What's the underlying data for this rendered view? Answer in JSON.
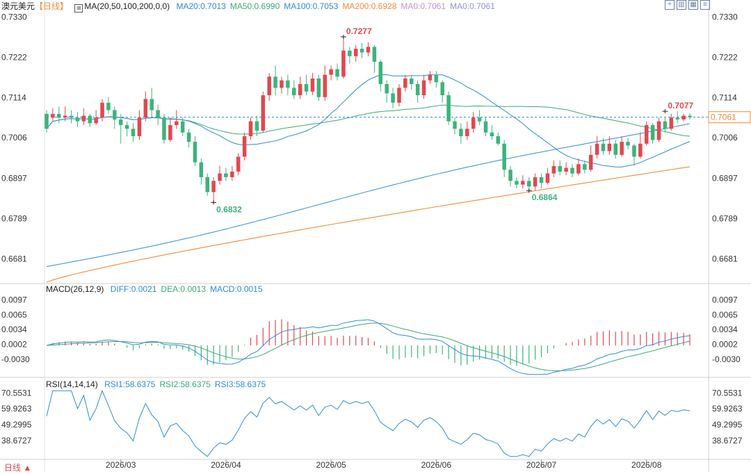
{
  "title": "澳元美元",
  "period_tab": "【日线】",
  "period_footer": "日线 ▲",
  "ma_header": {
    "label": "MA(20,50,100,200,0,0)",
    "items": [
      {
        "text": "MA20:0.7013",
        "color": "#2f8bd6"
      },
      {
        "text": "MA50:0.6990",
        "color": "#3aa876"
      },
      {
        "text": "MA100:0.7053",
        "color": "#2f8bd6"
      },
      {
        "text": "MA200:0.6928",
        "color": "#f08c3a"
      },
      {
        "text": "MA0:0.7061",
        "color": "#c58fd6"
      },
      {
        "text": "MA0:0.7061",
        "color": "#8f8fe0"
      }
    ]
  },
  "macd_header": {
    "label": "MACD(26,12,9)",
    "items": [
      {
        "text": "DIFF:0.0021",
        "color": "#2f8bd6"
      },
      {
        "text": "DEA:0.0013",
        "color": "#3aa876"
      },
      {
        "text": "MACD:0.0015",
        "color": "#2f8bd6"
      }
    ]
  },
  "rsi_header": {
    "label": "RSI(14,14,14)",
    "items": [
      {
        "text": "RSI1:58.6375",
        "color": "#2f8bd6"
      },
      {
        "text": "RSI2:58.6375",
        "color": "#3aa876"
      },
      {
        "text": "RSI3:58.6375",
        "color": "#2f8bd6"
      }
    ]
  },
  "toolbar_icons": [
    "crosshair-icon",
    "layout-icon",
    "indicator-icon",
    "settings-icon"
  ],
  "colors": {
    "up": "#e2474f",
    "down": "#3db37c",
    "ma20": "#2f8bd6",
    "ma50": "#3aa876",
    "ma100": "#2f8bd6",
    "ma200": "#f08c3a",
    "current_line": "#2f8bd6",
    "current_tag": "#f08c3a",
    "grid": "#e6e6e6"
  },
  "chart_data": [
    {
      "type": "candlestick",
      "title": "澳元美元",
      "y_ticks": [
        "0.7330",
        "0.7222",
        "0.7114",
        "0.7006",
        "0.6897",
        "0.6789",
        "0.6681"
      ],
      "ylim": [
        0.6618,
        0.7346
      ],
      "x_ticks": [
        "2026/03",
        "2026/04",
        "2026/05",
        "2026/06",
        "2026/07",
        "2026/08"
      ],
      "x_tick_index": [
        12,
        29,
        46,
        63,
        80,
        97
      ],
      "current_price": 0.7061,
      "current_price_label": "0.7061",
      "annotations": [
        {
          "text": "0.7277",
          "index": 48,
          "value": 0.7277,
          "kind": "high"
        },
        {
          "text": "0.6832",
          "index": 27,
          "value": 0.6832,
          "kind": "low"
        },
        {
          "text": "0.6864",
          "index": 78,
          "value": 0.6864,
          "kind": "low"
        },
        {
          "text": "0.7077",
          "index": 100,
          "value": 0.7077,
          "kind": "high"
        }
      ],
      "candles": [
        [
          0.707,
          0.703,
          0.708,
          0.702
        ],
        [
          0.706,
          0.707,
          0.7085,
          0.705
        ],
        [
          0.707,
          0.706,
          0.709,
          0.7045
        ],
        [
          0.706,
          0.7065,
          0.709,
          0.705
        ],
        [
          0.7065,
          0.706,
          0.708,
          0.7045
        ],
        [
          0.706,
          0.705,
          0.7075,
          0.7035
        ],
        [
          0.705,
          0.7065,
          0.7085,
          0.704
        ],
        [
          0.7065,
          0.7045,
          0.707,
          0.7035
        ],
        [
          0.7045,
          0.706,
          0.708,
          0.704
        ],
        [
          0.706,
          0.71,
          0.711,
          0.705
        ],
        [
          0.71,
          0.708,
          0.7115,
          0.707
        ],
        [
          0.708,
          0.7055,
          0.709,
          0.703
        ],
        [
          0.7055,
          0.704,
          0.707,
          0.699
        ],
        [
          0.704,
          0.703,
          0.705,
          0.701
        ],
        [
          0.703,
          0.701,
          0.7045,
          0.6995
        ],
        [
          0.701,
          0.706,
          0.708,
          0.7
        ],
        [
          0.706,
          0.711,
          0.713,
          0.705
        ],
        [
          0.711,
          0.708,
          0.714,
          0.706
        ],
        [
          0.708,
          0.706,
          0.7095,
          0.704
        ],
        [
          0.706,
          0.7,
          0.707,
          0.699
        ],
        [
          0.7,
          0.704,
          0.706,
          0.6995
        ],
        [
          0.704,
          0.705,
          0.708,
          0.703
        ],
        [
          0.705,
          0.702,
          0.706,
          0.701
        ],
        [
          0.702,
          0.6995,
          0.703,
          0.698
        ],
        [
          0.6995,
          0.694,
          0.701,
          0.693
        ],
        [
          0.694,
          0.69,
          0.695,
          0.688
        ],
        [
          0.69,
          0.686,
          0.691,
          0.685
        ],
        [
          0.686,
          0.689,
          0.69,
          0.6832
        ],
        [
          0.689,
          0.691,
          0.693,
          0.688
        ],
        [
          0.691,
          0.69,
          0.6925,
          0.689
        ],
        [
          0.69,
          0.6915,
          0.693,
          0.689
        ],
        [
          0.6915,
          0.6955,
          0.6965,
          0.6905
        ],
        [
          0.6955,
          0.701,
          0.702,
          0.6945
        ],
        [
          0.701,
          0.705,
          0.706,
          0.7
        ],
        [
          0.705,
          0.7025,
          0.7065,
          0.701
        ],
        [
          0.7025,
          0.712,
          0.713,
          0.702
        ],
        [
          0.712,
          0.717,
          0.718,
          0.7105
        ],
        [
          0.717,
          0.714,
          0.72,
          0.712
        ],
        [
          0.714,
          0.716,
          0.717,
          0.7125
        ],
        [
          0.716,
          0.714,
          0.7175,
          0.712
        ],
        [
          0.714,
          0.712,
          0.716,
          0.711
        ],
        [
          0.712,
          0.715,
          0.717,
          0.711
        ],
        [
          0.715,
          0.713,
          0.7175,
          0.712
        ],
        [
          0.713,
          0.7165,
          0.718,
          0.712
        ],
        [
          0.7165,
          0.7115,
          0.7175,
          0.7105
        ],
        [
          0.7115,
          0.7175,
          0.72,
          0.7105
        ],
        [
          0.7175,
          0.719,
          0.72,
          0.716
        ],
        [
          0.719,
          0.717,
          0.7205,
          0.716
        ],
        [
          0.717,
          0.724,
          0.7277,
          0.7165
        ],
        [
          0.724,
          0.7225,
          0.725,
          0.7205
        ],
        [
          0.7225,
          0.7245,
          0.7255,
          0.721
        ],
        [
          0.7245,
          0.7235,
          0.726,
          0.722
        ],
        [
          0.7235,
          0.725,
          0.7262,
          0.7225
        ],
        [
          0.725,
          0.721,
          0.7255,
          0.718
        ],
        [
          0.721,
          0.715,
          0.7215,
          0.713
        ],
        [
          0.715,
          0.7125,
          0.716,
          0.71
        ],
        [
          0.7125,
          0.71,
          0.714,
          0.7085
        ],
        [
          0.71,
          0.714,
          0.715,
          0.709
        ],
        [
          0.714,
          0.7165,
          0.7175,
          0.713
        ],
        [
          0.7165,
          0.715,
          0.7175,
          0.7135
        ],
        [
          0.715,
          0.712,
          0.716,
          0.71
        ],
        [
          0.712,
          0.716,
          0.7175,
          0.711
        ],
        [
          0.716,
          0.7175,
          0.7185,
          0.715
        ],
        [
          0.7175,
          0.7155,
          0.7185,
          0.714
        ],
        [
          0.7155,
          0.712,
          0.716,
          0.71
        ],
        [
          0.712,
          0.705,
          0.713,
          0.704
        ],
        [
          0.705,
          0.703,
          0.706,
          0.7015
        ],
        [
          0.703,
          0.701,
          0.7045,
          0.699
        ],
        [
          0.701,
          0.703,
          0.705,
          0.7
        ],
        [
          0.703,
          0.706,
          0.7075,
          0.702
        ],
        [
          0.706,
          0.705,
          0.708,
          0.704
        ],
        [
          0.705,
          0.702,
          0.706,
          0.701
        ],
        [
          0.702,
          0.701,
          0.704,
          0.7
        ],
        [
          0.701,
          0.699,
          0.702,
          0.6985
        ],
        [
          0.699,
          0.692,
          0.7,
          0.69
        ],
        [
          0.692,
          0.689,
          0.693,
          0.6875
        ],
        [
          0.689,
          0.688,
          0.69,
          0.687
        ],
        [
          0.688,
          0.689,
          0.6905,
          0.687
        ],
        [
          0.689,
          0.6875,
          0.69,
          0.6864
        ],
        [
          0.6875,
          0.69,
          0.691,
          0.6864
        ],
        [
          0.69,
          0.6885,
          0.691,
          0.687
        ],
        [
          0.6885,
          0.691,
          0.6925,
          0.688
        ],
        [
          0.691,
          0.693,
          0.6945,
          0.69
        ],
        [
          0.693,
          0.6915,
          0.6945,
          0.6905
        ],
        [
          0.6915,
          0.6925,
          0.694,
          0.6905
        ],
        [
          0.6925,
          0.691,
          0.6935,
          0.69
        ],
        [
          0.691,
          0.6935,
          0.695,
          0.6905
        ],
        [
          0.6935,
          0.692,
          0.6945,
          0.691
        ],
        [
          0.692,
          0.696,
          0.6985,
          0.6915
        ],
        [
          0.696,
          0.699,
          0.701,
          0.695
        ],
        [
          0.699,
          0.697,
          0.7005,
          0.696
        ],
        [
          0.697,
          0.699,
          0.701,
          0.696
        ],
        [
          0.699,
          0.696,
          0.7,
          0.695
        ],
        [
          0.696,
          0.6995,
          0.701,
          0.6955
        ],
        [
          0.6995,
          0.6985,
          0.7005,
          0.6975
        ],
        [
          0.6985,
          0.6955,
          0.699,
          0.693
        ],
        [
          0.6955,
          0.699,
          0.702,
          0.695
        ],
        [
          0.699,
          0.704,
          0.705,
          0.6985
        ],
        [
          0.704,
          0.7,
          0.7045,
          0.699
        ],
        [
          0.7,
          0.705,
          0.706,
          0.6995
        ],
        [
          0.705,
          0.703,
          0.706,
          0.702
        ],
        [
          0.703,
          0.706,
          0.707,
          0.7025
        ],
        [
          0.706,
          0.7055,
          0.7077,
          0.7045
        ],
        [
          0.7055,
          0.7065,
          0.707,
          0.705
        ],
        [
          0.7065,
          0.7061,
          0.7072,
          0.7055
        ]
      ]
    },
    {
      "type": "line",
      "title": "MACD(26,12,9)",
      "y_ticks": [
        "0.0097",
        "0.0065",
        "0.0034",
        "0.0002",
        "-0.0030"
      ],
      "ylim": [
        -0.0064,
        0.0107
      ]
    },
    {
      "type": "line",
      "title": "RSI(14,14,14)",
      "y_ticks": [
        "70.5531",
        "59.9263",
        "49.2995",
        "38.6727"
      ],
      "ylim": [
        27.0,
        73.0
      ]
    }
  ]
}
